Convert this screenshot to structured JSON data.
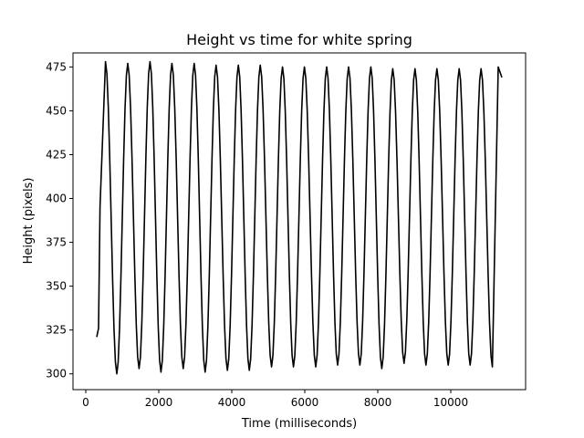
{
  "chart_data": {
    "type": "line",
    "title": "Height vs time for white spring",
    "xlabel": "Time (milliseconds)",
    "ylabel": "Height (pixels)",
    "xlim": [
      -350,
      12050
    ],
    "ylim": [
      291,
      483
    ],
    "x_ticks": [
      0,
      2000,
      4000,
      6000,
      8000,
      10000
    ],
    "x_tick_labels": [
      "0",
      "2000",
      "4000",
      "6000",
      "8000",
      "10000"
    ],
    "y_ticks": [
      300,
      325,
      350,
      375,
      400,
      425,
      450,
      475
    ],
    "y_tick_labels": [
      "300",
      "325",
      "350",
      "375",
      "400",
      "425",
      "450",
      "475"
    ],
    "grid": false,
    "series": [
      {
        "color": "#000000",
        "x_start": 300,
        "x_end": 11400,
        "peaks": [
          [
            540,
            478
          ],
          [
            1150,
            477
          ],
          [
            1760,
            478
          ],
          [
            2360,
            477
          ],
          [
            2970,
            477
          ],
          [
            3570,
            476
          ],
          [
            4180,
            476
          ],
          [
            4780,
            476
          ],
          [
            5390,
            475
          ],
          [
            5990,
            475
          ],
          [
            6600,
            475
          ],
          [
            7200,
            475
          ],
          [
            7810,
            475
          ],
          [
            8410,
            474
          ],
          [
            9020,
            474
          ],
          [
            9620,
            474
          ],
          [
            10230,
            474
          ],
          [
            10830,
            474
          ]
        ],
        "troughs": [
          [
            850,
            300
          ],
          [
            1460,
            303
          ],
          [
            2060,
            301
          ],
          [
            2670,
            303
          ],
          [
            3270,
            301
          ],
          [
            3880,
            302
          ],
          [
            4480,
            302
          ],
          [
            5090,
            304
          ],
          [
            5690,
            304
          ],
          [
            6300,
            304
          ],
          [
            6900,
            305
          ],
          [
            7510,
            305
          ],
          [
            8110,
            303
          ],
          [
            8720,
            306
          ],
          [
            9320,
            305
          ],
          [
            9930,
            305
          ],
          [
            10530,
            305
          ],
          [
            11140,
            304
          ]
        ],
        "start_points": [
          [
            300,
            321
          ],
          [
            350,
            326
          ],
          [
            390,
            395
          ]
        ],
        "end_points": [
          [
            11300,
            475
          ],
          [
            11400,
            469
          ]
        ]
      }
    ]
  }
}
